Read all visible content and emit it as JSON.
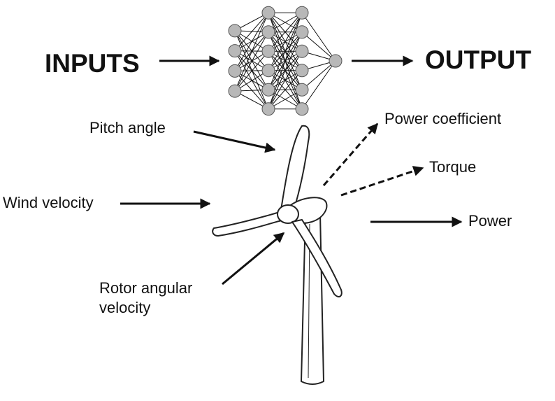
{
  "diagram": {
    "inputs_heading": "INPUTS",
    "output_heading": "OUTPUT",
    "input_labels": {
      "pitch": "Pitch angle",
      "wind": "Wind velocity",
      "rotor_line1": "Rotor angular",
      "rotor_line2": "velocity"
    },
    "output_labels": {
      "power_coefficient": "Power coefficient",
      "torque": "Torque",
      "power": "Power"
    },
    "network": {
      "layers": [
        4,
        6,
        6,
        1
      ]
    },
    "colors": {
      "node_fill": "#b8b8b8",
      "node_stroke": "#555555",
      "line": "#111111",
      "turbine_fill": "#ffffff",
      "turbine_stroke": "#222222"
    }
  }
}
